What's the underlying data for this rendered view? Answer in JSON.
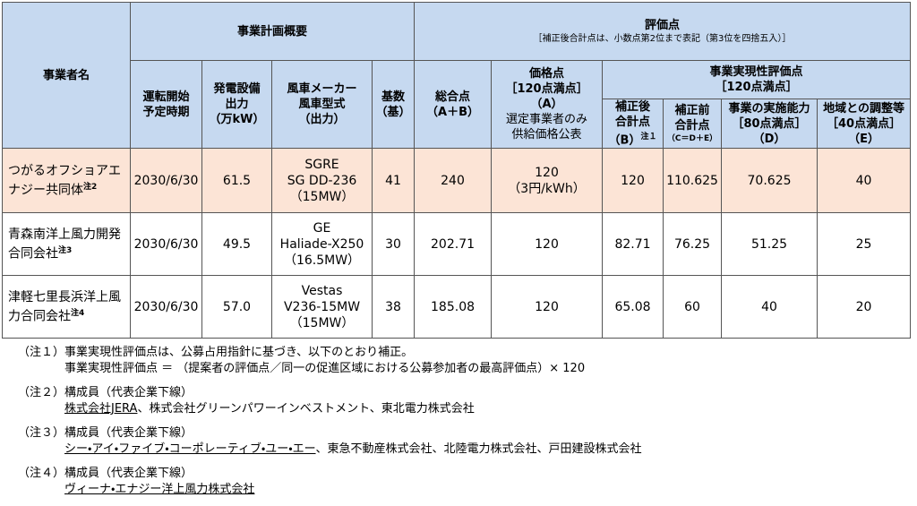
{
  "header": {
    "operator": "事業者名",
    "plan_overview": "事業計画概要",
    "evaluation": "評価点",
    "evaluation_note": "［補正後合計点は、小数点第2位まで表記（第3位を四捨五入）］",
    "start_date": "運転開始\n予定時期",
    "capacity": "発電設備\n出力\n（万kW）",
    "turbine": "風車メーカー\n風車型式\n（出力）",
    "units": "基数\n（基）",
    "total": "総合点\n（A＋B）",
    "price_score": "価格点\n［120点満点］\n（A）",
    "price_note": "選定事業者のみ\n供給価格公表",
    "feasibility": "事業実現性評価点\n［120点満点］",
    "corrected": "補正後\n合計点\n（B）",
    "corrected_note": "注１",
    "uncorrected": "補正前\n合計点",
    "uncorrected_formula": "（C＝D＋E）",
    "capability": "事業の実施能力\n［80点満点］\n（D）",
    "coordination": "地域との調整等\n［40点満点］\n（E）"
  },
  "rows": [
    {
      "operator": "つがるオフショアエナジー共同体",
      "note": "注2",
      "start": "2030/6/30",
      "capacity": "61.5",
      "turbine": "SGRE\nSG DD-236\n（15MW）",
      "units": "41",
      "total": "240",
      "price": "120\n（3円/kWh）",
      "corrected": "120",
      "uncorrected": "110.625",
      "capability": "70.625",
      "coordination": "40"
    },
    {
      "operator": "青森南洋上風力開発合同会社",
      "note": "注3",
      "start": "2030/6/30",
      "capacity": "49.5",
      "turbine": "GE\nHaliade-X250\n（16.5MW）",
      "units": "30",
      "total": "202.71",
      "price": "120",
      "corrected": "82.71",
      "uncorrected": "76.25",
      "capability": "51.25",
      "coordination": "25"
    },
    {
      "operator": "津軽七里長浜洋上風力合同会社",
      "note": "注4",
      "start": "2030/6/30",
      "capacity": "57.0",
      "turbine": "Vestas\nV236-15MW\n（15MW）",
      "units": "38",
      "total": "185.08",
      "price": "120",
      "corrected": "65.08",
      "uncorrected": "60",
      "capability": "40",
      "coordination": "20"
    }
  ],
  "notes": [
    {
      "label": "（注１）",
      "text": "事業実現性評価点は、公募占用指針に基づき、以下のとおり補正。",
      "formula": "事業実現性評価点 ＝ （提案者の評価点／同一の促進区域における公募参加者の最高評価点）× 120"
    },
    {
      "label": "（注２）",
      "text": "構成員（代表企業下線）",
      "underlined": "株式会社JERA",
      "rest": "、株式会社グリーンパワーインベストメント、東北電力株式会社"
    },
    {
      "label": "（注３）",
      "text": "構成員（代表企業下線）",
      "underlined": "シー・アイ・ファイブ・コーポレーティブ・ユー・エー",
      "rest": "、東急不動産株式会社、北陸電力株式会社、戸田建設株式会社"
    },
    {
      "label": "（注４）",
      "text": "構成員（代表企業下線）",
      "underlined": "ヴィーナ・エナジー洋上風力株式会社"
    }
  ]
}
